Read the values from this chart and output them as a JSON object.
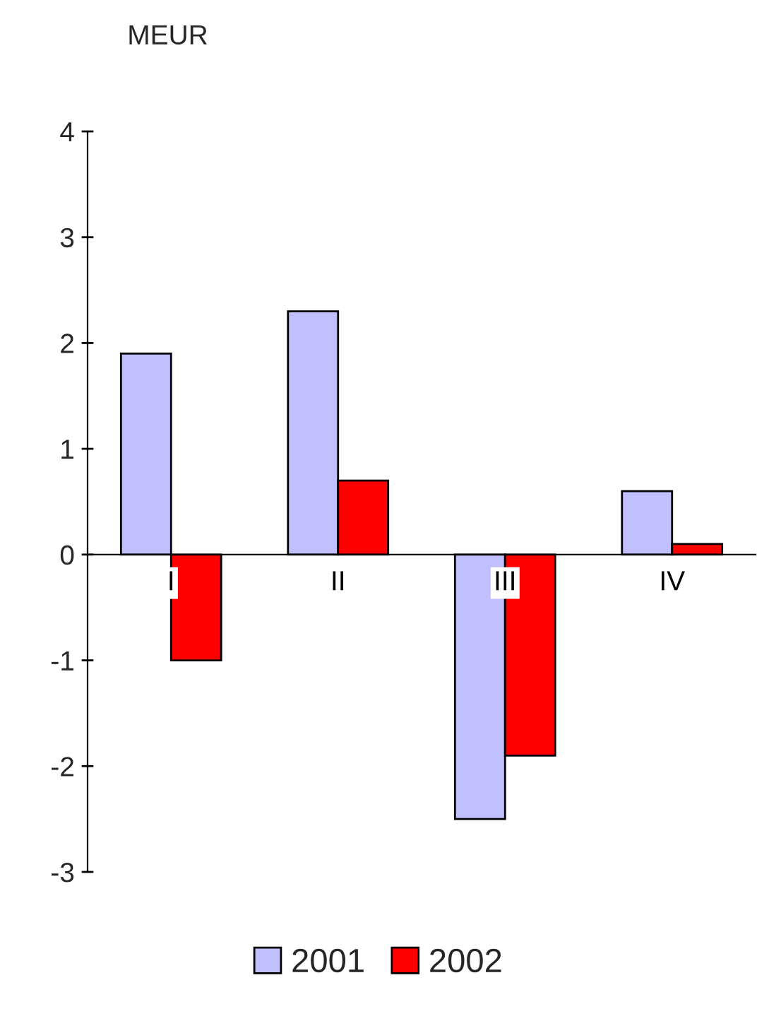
{
  "chart_data": {
    "type": "bar",
    "ylabel": "MEUR",
    "categories": [
      "I",
      "II",
      "III",
      "IV"
    ],
    "series": [
      {
        "name": "2001",
        "color": "#c0c0ff",
        "values": [
          1.9,
          2.3,
          -2.5,
          0.6
        ]
      },
      {
        "name": "2002",
        "color": "#ff0000",
        "values": [
          -1.0,
          0.7,
          -1.9,
          0.1
        ]
      }
    ],
    "ylim": [
      -3,
      4
    ],
    "yticks": [
      -3,
      -2,
      -1,
      0,
      1,
      2,
      3,
      4
    ],
    "grid": false,
    "legend": "bottom"
  }
}
